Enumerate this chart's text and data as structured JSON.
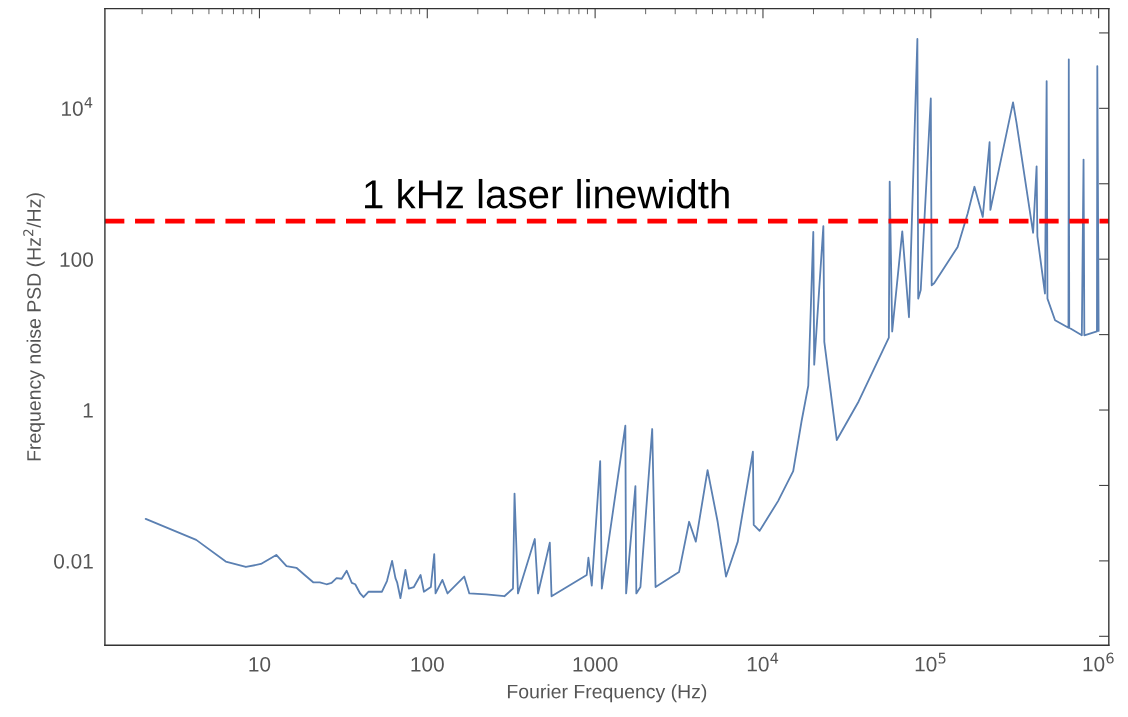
{
  "chart_data": {
    "type": "line",
    "xlabel": "Fourier Frequency (Hz)",
    "ylabel": "Frequency noise PSD (Hz$^{2}$/Hz)",
    "log": "xy",
    "grid": false,
    "legend": false,
    "marker": "none",
    "line_style": "solid",
    "xlim": [
      1.2,
      1150000
    ],
    "ylim": [
      0.00076,
      210000
    ],
    "xticks": [
      10,
      100,
      1000,
      {
        "value": 10000,
        "label": "10$^{4}$"
      },
      {
        "value": 100000,
        "label": "10$^{5}$"
      },
      {
        "value": 1000000,
        "label": "10$^{6}$"
      }
    ],
    "yticks": [
      {
        "value": 0.001,
        "label": null
      },
      0.01,
      {
        "value": 0.1,
        "label": null
      },
      1,
      {
        "value": 10,
        "label": null
      },
      100,
      {
        "value": 1000,
        "label": null
      },
      {
        "value": 10000,
        "label": "10$^{4}$"
      },
      {
        "value": 100000,
        "label": null
      }
    ],
    "ref_lines": [
      {
        "axis": "y",
        "value": 320,
        "label": "1 kHz laser linewidth",
        "color": "#ff0000",
        "line_style": "dashed"
      }
    ],
    "series": [
      {
        "color": "#5b80b2",
        "x": [
          2.1,
          4.2,
          6.3,
          8.3,
          10.2,
          12.6,
          14.5,
          16.6,
          18.6,
          20.9,
          22.9,
          25.1,
          26.9,
          28.8,
          30.9,
          33.1,
          35.5,
          37.2,
          39.8,
          41.7,
          44.7,
          49,
          53.7,
          57.5,
          61.7,
          64.6,
          66.1,
          69.2,
          74.1,
          77.6,
          83.2,
          91.2,
          95.5,
          105,
          110,
          112,
          123,
          132,
          166,
          178,
          224,
          288,
          324,
          331,
          347,
          437,
          457,
          537,
          550,
          891,
          912,
          955,
          1072,
          1096,
          1514,
          1530,
          1738,
          1760,
          1862,
          2188,
          2291,
          3162,
          3631,
          3981,
          4677,
          5370,
          6026,
          7079,
          8710,
          8810,
          9550,
          12300,
          15140,
          16980,
          18620,
          19950,
          20200,
          22900,
          23200,
          27540,
          37150,
          56230,
          56900,
          58880,
          67610,
          74130,
          83180,
          84140,
          87100,
          100000,
          101200,
          104700,
          144500,
          166000,
          182000,
          204000,
          224000,
          226500,
          309000,
          324000,
          407000,
          427000,
          431500,
          479000,
          490000,
          495500,
          550000,
          661000,
          664000,
          668000,
          794000,
          813000,
          822000,
          977000,
          982000,
          1000000
        ],
        "values": [
          0.036,
          0.019,
          0.0098,
          0.0083,
          0.0091,
          0.012,
          0.0085,
          0.0081,
          0.0065,
          0.0052,
          0.0052,
          0.0049,
          0.0051,
          0.0059,
          0.0058,
          0.0074,
          0.0051,
          0.0049,
          0.0037,
          0.0033,
          0.0039,
          0.0039,
          0.0039,
          0.0054,
          0.01,
          0.0059,
          0.0052,
          0.0032,
          0.0076,
          0.0043,
          0.0045,
          0.0065,
          0.0039,
          0.0045,
          0.0123,
          0.0037,
          0.0056,
          0.0037,
          0.0062,
          0.0037,
          0.0036,
          0.0034,
          0.0043,
          0.078,
          0.0037,
          0.0195,
          0.0037,
          0.0174,
          0.0034,
          0.0065,
          0.011,
          0.0047,
          0.21,
          0.0043,
          0.62,
          0.0037,
          0.098,
          0.0037,
          0.0045,
          0.56,
          0.0045,
          0.0071,
          0.033,
          0.018,
          0.16,
          0.033,
          0.0062,
          0.018,
          0.28,
          0.03,
          0.025,
          0.062,
          0.155,
          0.71,
          2.1,
          230,
          4,
          275,
          8,
          0.4,
          1.3,
          9.1,
          1070,
          11,
          234,
          17,
          83000,
          30,
          39,
          13500,
          45,
          48,
          145,
          407,
          912,
          363,
          3550,
          450,
          12000,
          6460,
          224,
          1700,
          200,
          35,
          22900,
          30,
          15.5,
          12.3,
          44700,
          12.3,
          9.8,
          2090,
          9.8,
          11,
          36300,
          11.2
        ]
      }
    ]
  }
}
